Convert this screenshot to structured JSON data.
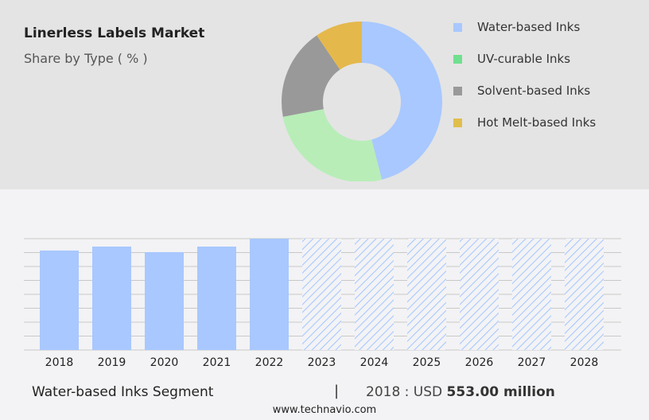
{
  "header": {
    "title": "Linerless Labels Market",
    "subtitle": "Share by Type ( % )"
  },
  "chart_data": [
    {
      "type": "pie",
      "subtype": "donut",
      "labels": [
        "Water-based Inks",
        "UV-curable Inks",
        "Solvent-based Inks",
        "Hot Melt-based Inks"
      ],
      "values": [
        46,
        26,
        18.5,
        9.5
      ],
      "colors": [
        "#a8c8ff",
        "#b8edb8",
        "#999999",
        "#e5b84c"
      ],
      "legend_colors": [
        "#a8c8ff",
        "#6fe08f",
        "#999999",
        "#e0be4e"
      ],
      "legend": "right"
    },
    {
      "type": "bar",
      "categories": [
        "2018",
        "2019",
        "2020",
        "2021",
        "2022",
        "2023",
        "2024",
        "2025",
        "2026",
        "2027",
        "2028"
      ],
      "values": [
        553,
        575,
        544,
        575,
        619,
        null,
        null,
        null,
        null,
        null,
        null
      ],
      "forecast": [
        "2023",
        "2024",
        "2025",
        "2026",
        "2027",
        "2028"
      ],
      "color": "#a8c8ff",
      "grid": true,
      "ylim": [
        0,
        619
      ]
    }
  ],
  "footer": {
    "segment": "Water-based Inks Segment",
    "separator": "|",
    "year_prefix": "2018 : USD ",
    "value": "553.00 million",
    "site": "www.technavio.com"
  }
}
